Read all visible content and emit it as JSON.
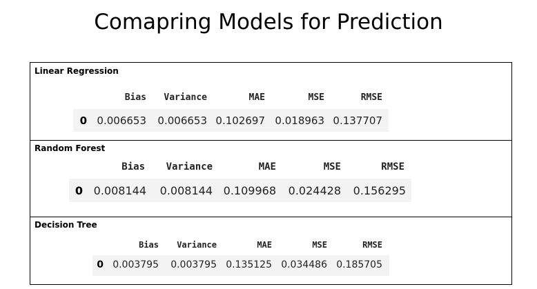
{
  "title": "Comapring Models for Prediction",
  "columns": [
    "Bias",
    "Variance",
    "MAE",
    "MSE",
    "RMSE"
  ],
  "tables": [
    {
      "label": "Linear Regression",
      "index": "0",
      "values": [
        "0.006653",
        "0.006653",
        "0.102697",
        "0.018963",
        "0.137707"
      ]
    },
    {
      "label": "Random Forest",
      "index": "0",
      "values": [
        "0.008144",
        "0.008144",
        "0.109968",
        "0.024428",
        "0.156295"
      ]
    },
    {
      "label": "Decision Tree",
      "index": "0",
      "values": [
        "0.003795",
        "0.003795",
        "0.135125",
        "0.034486",
        "0.185705"
      ]
    }
  ]
}
